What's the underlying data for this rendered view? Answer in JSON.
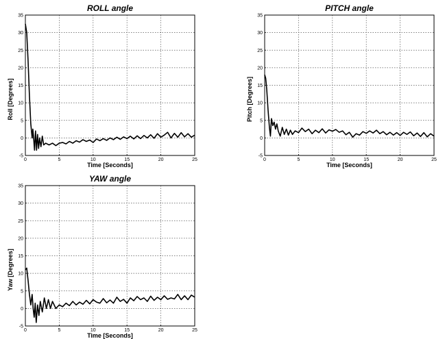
{
  "chart_data": [
    {
      "type": "line",
      "title": "ROLL angle",
      "xlabel": "Time [Seconds]",
      "ylabel": "Roll [Degrees]",
      "xlim": [
        0,
        25
      ],
      "ylim": [
        -5,
        35
      ],
      "xticks": [
        0,
        5,
        10,
        15,
        20,
        25
      ],
      "yticks": [
        -5,
        0,
        5,
        10,
        15,
        20,
        25,
        30,
        35
      ],
      "grid": true,
      "series": [
        {
          "x": [
            0,
            0.2,
            0.4,
            0.6,
            0.8,
            1.0,
            1.1,
            1.2,
            1.35,
            1.5,
            1.65,
            1.8,
            1.95,
            2.1,
            2.3,
            2.5,
            2.7,
            3.0,
            3.5,
            4.0,
            4.5,
            5.0,
            5.5,
            6.0,
            6.5,
            7.0,
            7.5,
            8.0,
            8.5,
            9.0,
            9.5,
            10.0,
            10.5,
            11.0,
            11.5,
            12.0,
            12.5,
            13.0,
            13.5,
            14.0,
            14.5,
            15.0,
            15.5,
            16.0,
            16.5,
            17.0,
            17.5,
            18.0,
            18.5,
            19.0,
            19.5,
            20.0,
            20.5,
            21.0,
            21.5,
            22.0,
            22.5,
            23.0,
            23.5,
            24.0,
            24.5,
            25.0
          ],
          "y": [
            32.5,
            30,
            22,
            12,
            4,
            0,
            2.5,
            0.5,
            -3.5,
            2,
            -3.5,
            1,
            -3,
            0,
            -2.5,
            0.5,
            -2,
            -1.5,
            -2,
            -1.5,
            -2.2,
            -1.5,
            -1.3,
            -1.7,
            -1,
            -1.5,
            -0.8,
            -1.2,
            -0.5,
            -1.0,
            -0.6,
            -1.3,
            -0.3,
            -0.8,
            -0.2,
            -0.7,
            0,
            -0.5,
            0.2,
            -0.4,
            0.3,
            -0.2,
            0.5,
            -0.3,
            0.6,
            -0.2,
            0.7,
            0,
            0.9,
            -0.1,
            1.2,
            0.2,
            0.8,
            1.6,
            0,
            1.3,
            0.2,
            1.5,
            0.3,
            1.2,
            0.2,
            0.8
          ]
        }
      ]
    },
    {
      "type": "line",
      "title": "PITCH angle",
      "xlabel": "Time [Seconds]",
      "ylabel": "Pitch [Degrees]",
      "xlim": [
        0,
        25
      ],
      "ylim": [
        -5,
        35
      ],
      "xticks": [
        0,
        5,
        10,
        15,
        20,
        25
      ],
      "yticks": [
        -5,
        0,
        5,
        10,
        15,
        20,
        25,
        30,
        35
      ],
      "grid": true,
      "series": [
        {
          "x": [
            0,
            0.15,
            0.3,
            0.5,
            0.7,
            0.85,
            1.0,
            1.2,
            1.4,
            1.6,
            1.8,
            2.0,
            2.3,
            2.6,
            2.9,
            3.2,
            3.5,
            3.8,
            4.1,
            4.5,
            5.0,
            5.5,
            6.0,
            6.5,
            7.0,
            7.5,
            8.0,
            8.5,
            9.0,
            9.5,
            10.0,
            10.5,
            11.0,
            11.5,
            12.0,
            12.5,
            13.0,
            13.5,
            14.0,
            14.5,
            15.0,
            15.5,
            16.0,
            16.5,
            17.0,
            17.5,
            18.0,
            18.5,
            19.0,
            19.5,
            20.0,
            20.5,
            21.0,
            21.5,
            22.0,
            22.5,
            23.0,
            23.5,
            24.0,
            24.5,
            25.0
          ],
          "y": [
            18,
            17,
            14,
            8,
            3,
            0.5,
            5.5,
            3.5,
            4.5,
            2.5,
            4,
            2,
            0.5,
            3,
            1,
            2.5,
            0.8,
            2.2,
            1,
            2,
            1.5,
            2.8,
            1.8,
            2.5,
            1.2,
            2.2,
            1.5,
            2.6,
            1.4,
            2.3,
            1.9,
            2.4,
            1.6,
            2.0,
            0.9,
            1.6,
            0.2,
            1.2,
            0.8,
            1.8,
            1.3,
            2.0,
            1.4,
            2.2,
            1.2,
            1.8,
            0.9,
            1.6,
            0.8,
            1.5,
            0.7,
            1.6,
            1.0,
            1.7,
            0.6,
            1.4,
            0.4,
            1.5,
            0.3,
            1.2,
            0.5
          ]
        }
      ]
    },
    {
      "type": "line",
      "title": "YAW angle",
      "xlabel": "Time [Seconds]",
      "ylabel": "Yaw [Degrees]",
      "xlim": [
        0,
        25
      ],
      "ylim": [
        -5,
        35
      ],
      "xticks": [
        0,
        5,
        10,
        15,
        20,
        25
      ],
      "yticks": [
        -5,
        0,
        5,
        10,
        15,
        20,
        25,
        30,
        35
      ],
      "grid": true,
      "series": [
        {
          "x": [
            0,
            0.2,
            0.4,
            0.6,
            0.8,
            1.0,
            1.15,
            1.3,
            1.45,
            1.6,
            1.8,
            2.0,
            2.2,
            2.5,
            2.8,
            3.1,
            3.4,
            3.7,
            4.0,
            4.5,
            5.0,
            5.5,
            6.0,
            6.5,
            7.0,
            7.5,
            8.0,
            8.5,
            9.0,
            9.5,
            10.0,
            10.5,
            11.0,
            11.5,
            12.0,
            12.5,
            13.0,
            13.5,
            14.0,
            14.5,
            15.0,
            15.5,
            16.0,
            16.5,
            17.0,
            17.5,
            18.0,
            18.5,
            19.0,
            19.5,
            20.0,
            20.5,
            21.0,
            21.5,
            22.0,
            22.5,
            23.0,
            23.5,
            24.0,
            24.5,
            25.0
          ],
          "y": [
            11,
            11.5,
            8,
            4,
            1,
            4,
            0,
            -2.5,
            1.5,
            -4,
            1,
            -2,
            2,
            -1,
            3,
            0,
            2.5,
            0,
            2,
            0,
            1,
            0.5,
            1.5,
            0.8,
            2,
            1,
            1.8,
            1.2,
            2.3,
            1.3,
            2.5,
            1.8,
            1.5,
            2.8,
            1.6,
            2.4,
            1.5,
            3.2,
            2.0,
            2.6,
            1.5,
            3.0,
            2.2,
            3.4,
            2.5,
            3.0,
            2.0,
            3.5,
            2.3,
            3.2,
            2.5,
            3.6,
            2.6,
            3.0,
            2.7,
            4.0,
            2.5,
            3.6,
            2.5,
            3.8,
            3.2
          ]
        }
      ]
    }
  ]
}
